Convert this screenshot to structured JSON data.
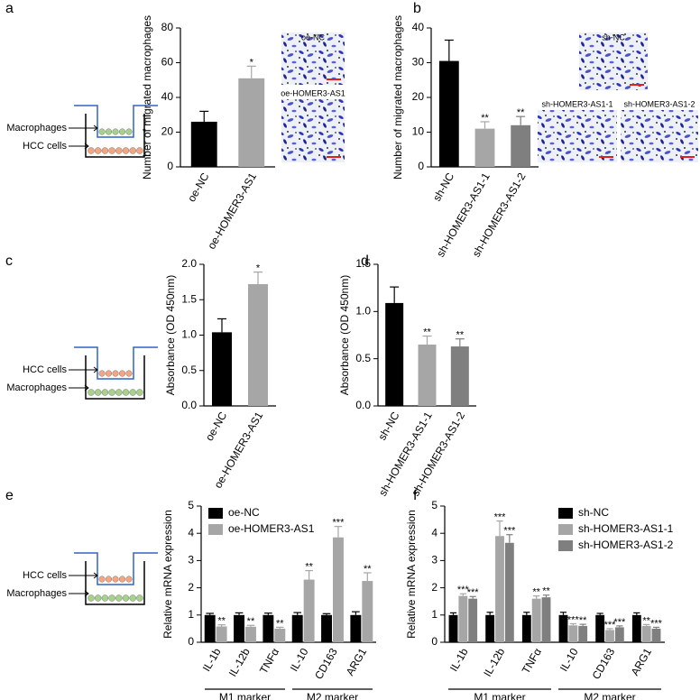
{
  "panel_labels": [
    "a",
    "b",
    "c",
    "d",
    "e",
    "f"
  ],
  "diagrams": [
    {
      "labels": [
        "Macrophages",
        "HCC cells"
      ]
    },
    {
      "labels": [
        "HCC cells",
        "Macrophages"
      ]
    },
    {
      "labels": [
        "HCC cells",
        "Macrophages"
      ]
    }
  ],
  "chart_data": [
    {
      "type": "bar",
      "ylabel": "Number of migrated macrophages",
      "categories": [
        "oe-NC",
        "oe-HOMER3-AS1"
      ],
      "values": [
        26,
        51
      ],
      "errors": [
        6,
        7
      ],
      "colors": [
        "#000000",
        "#a6a6a6"
      ],
      "annotations": [
        null,
        "*"
      ],
      "ylim": [
        0,
        80
      ],
      "yticks": [
        0,
        20,
        40,
        60,
        80
      ],
      "image_labels": [
        "oe-NC",
        "oe-HOMER3-AS1"
      ]
    },
    {
      "type": "bar",
      "ylabel": "Number of migrated macrophages",
      "categories": [
        "sh-NC",
        "sh-HOMER3-AS1-1",
        "sh-HOMER3-AS1-2"
      ],
      "values": [
        30.5,
        11,
        12
      ],
      "errors": [
        6,
        2,
        2.5
      ],
      "colors": [
        "#000000",
        "#a6a6a6",
        "#7f7f7f"
      ],
      "annotations": [
        null,
        "**",
        "**"
      ],
      "ylim": [
        0,
        40
      ],
      "yticks": [
        0,
        10,
        20,
        30,
        40
      ],
      "image_labels": [
        "sh-NC",
        "sh-HOMER3-AS1-1",
        "sh-HOMER3-AS1-2"
      ]
    },
    {
      "type": "bar",
      "ylabel": "Absorbance (OD 450nm)",
      "categories": [
        "oe-NC",
        "oe-HOMER3-AS1"
      ],
      "values": [
        1.04,
        1.72
      ],
      "errors": [
        0.19,
        0.17
      ],
      "colors": [
        "#000000",
        "#a6a6a6"
      ],
      "annotations": [
        null,
        "*"
      ],
      "ylim": [
        0,
        2
      ],
      "yticks": [
        {
          "value": 0,
          "label": "0.0"
        },
        {
          "value": 0.5,
          "label": "0.5"
        },
        {
          "value": 1,
          "label": "1.0"
        },
        {
          "value": 1.5,
          "label": "1.5"
        },
        {
          "value": 2,
          "label": "2.0"
        }
      ]
    },
    {
      "type": "bar",
      "ylabel": "Absorbance (OD 450nm)",
      "categories": [
        "sh-NC",
        "sh-HOMER3-AS1-1",
        "sh-HOMER3-AS1-2"
      ],
      "values": [
        1.09,
        0.65,
        0.63
      ],
      "errors": [
        0.17,
        0.09,
        0.08
      ],
      "colors": [
        "#000000",
        "#a6a6a6",
        "#7f7f7f"
      ],
      "annotations": [
        null,
        "**",
        "**"
      ],
      "ylim": [
        0,
        1.5
      ],
      "yticks": [
        {
          "value": 0,
          "label": "0.0"
        },
        {
          "value": 0.5,
          "label": "0.5"
        },
        {
          "value": 1,
          "label": "1.0"
        },
        {
          "value": 1.5,
          "label": "1.5"
        }
      ]
    },
    {
      "type": "grouped-bar",
      "ylabel": "Relative mRNA expression",
      "categories": [
        "IL-1b",
        "IL-12b",
        "TNFα",
        "IL-10",
        "CD163",
        "ARG1"
      ],
      "group_labels": [
        "M1 marker",
        "M2 marker"
      ],
      "series": [
        {
          "name": "oe-NC",
          "color": "#000000",
          "values": [
            1,
            1,
            1,
            1,
            1,
            1
          ],
          "errors": [
            0.06,
            0.08,
            0.07,
            0.09,
            0.05,
            0.12
          ],
          "annotations": [
            null,
            null,
            null,
            null,
            null,
            null
          ]
        },
        {
          "name": "oe-HOMER3-AS1",
          "color": "#a6a6a6",
          "values": [
            0.58,
            0.57,
            0.5,
            2.3,
            3.85,
            2.25
          ],
          "errors": [
            0.06,
            0.05,
            0.05,
            0.33,
            0.4,
            0.3
          ],
          "annotations": [
            "**",
            "**",
            "**",
            "**",
            "***",
            "**"
          ]
        }
      ],
      "ylim": [
        0,
        5
      ],
      "yticks": [
        0,
        1,
        2,
        3,
        4,
        5
      ],
      "legend": "upper left"
    },
    {
      "type": "grouped-bar",
      "ylabel": "Relative mRNA expression",
      "categories": [
        "IL-1b",
        "IL-12b",
        "TNFα",
        "IL-10",
        "CD163",
        "ARG1"
      ],
      "group_labels": [
        "M1 marker",
        "M2 marker"
      ],
      "series": [
        {
          "name": "sh-NC",
          "color": "#000000",
          "values": [
            1,
            1,
            1,
            1,
            1,
            1
          ],
          "errors": [
            0.08,
            0.1,
            0.1,
            0.1,
            0.06,
            0.08
          ],
          "annotations": [
            null,
            null,
            null,
            null,
            null,
            null
          ]
        },
        {
          "name": "sh-HOMER3-AS1-1",
          "color": "#a6a6a6",
          "values": [
            1.7,
            3.9,
            1.6,
            0.62,
            0.45,
            0.6
          ],
          "errors": [
            0.08,
            0.55,
            0.1,
            0.06,
            0.05,
            0.05
          ],
          "annotations": [
            "***",
            "***",
            "**",
            "***",
            "***",
            "**"
          ]
        },
        {
          "name": "sh-HOMER3-AS1-2",
          "color": "#7f7f7f",
          "values": [
            1.6,
            3.65,
            1.65,
            0.6,
            0.55,
            0.5
          ],
          "errors": [
            0.08,
            0.3,
            0.08,
            0.06,
            0.05,
            0.05
          ],
          "annotations": [
            "***",
            "***",
            "**",
            "**",
            "***",
            "***"
          ]
        }
      ],
      "ylim": [
        0,
        5
      ],
      "yticks": [
        0,
        1,
        2,
        3,
        4,
        5
      ],
      "legend": "upper right"
    }
  ]
}
